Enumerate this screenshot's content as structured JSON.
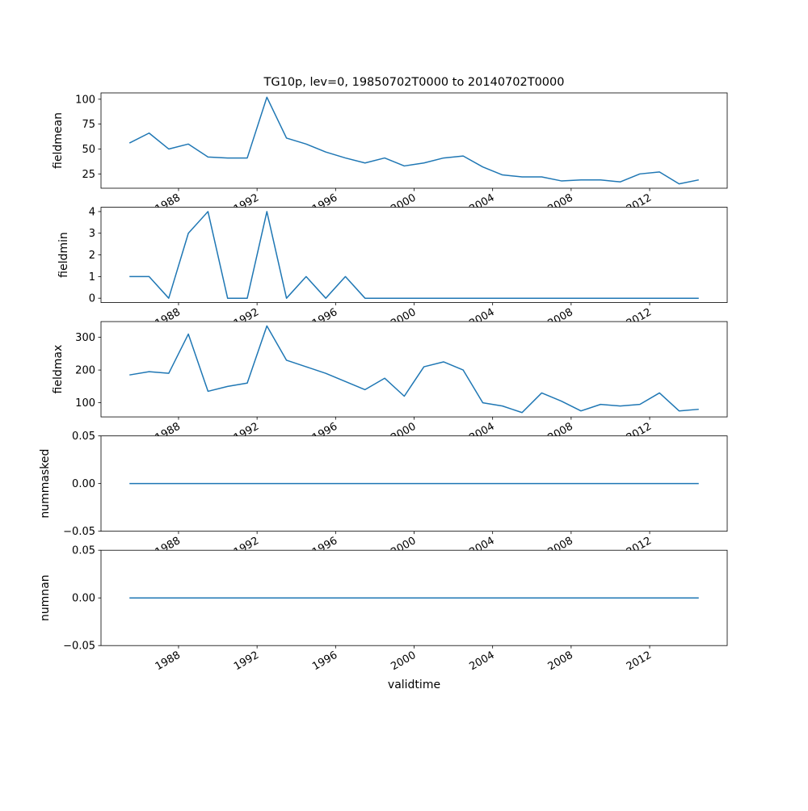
{
  "figure": {
    "title": "TG10p, lev=0, 19850702T0000 to 20140702T0000",
    "xlabel": "validtime",
    "background": "#ffffff",
    "line_color": "#1f77b4",
    "xlim": [
      1984.05,
      2015.95
    ],
    "x_years": [
      1985,
      1986,
      1987,
      1988,
      1989,
      1990,
      1991,
      1992,
      1993,
      1994,
      1995,
      1996,
      1997,
      1998,
      1999,
      2000,
      2001,
      2002,
      2003,
      2004,
      2005,
      2006,
      2007,
      2008,
      2009,
      2010,
      2011,
      2012,
      2013,
      2014
    ],
    "xticks": [
      {
        "value": 1988,
        "label": "1988"
      },
      {
        "value": 1992,
        "label": "1992"
      },
      {
        "value": 1996,
        "label": "1996"
      },
      {
        "value": 2000,
        "label": "2000"
      },
      {
        "value": 2004,
        "label": "2004"
      },
      {
        "value": 2008,
        "label": "2008"
      },
      {
        "value": 2012,
        "label": "2012"
      }
    ]
  },
  "chart_data": [
    {
      "type": "line",
      "ylabel": "fieldmean",
      "ylim": [
        10.65,
        106.35
      ],
      "yticks": [
        {
          "value": 25,
          "label": "25"
        },
        {
          "value": 50,
          "label": "50"
        },
        {
          "value": 75,
          "label": "75"
        },
        {
          "value": 100,
          "label": "100"
        }
      ],
      "values": [
        56,
        66,
        50,
        55,
        42,
        41,
        41,
        102,
        61,
        55,
        47,
        41,
        36,
        41,
        33,
        36,
        41,
        43,
        32,
        24,
        22,
        22,
        18,
        19,
        19,
        17,
        25,
        27,
        15,
        19
      ]
    },
    {
      "type": "line",
      "ylabel": "fieldmin",
      "ylim": [
        -0.2,
        4.2
      ],
      "yticks": [
        {
          "value": 0,
          "label": "0"
        },
        {
          "value": 1,
          "label": "1"
        },
        {
          "value": 2,
          "label": "2"
        },
        {
          "value": 3,
          "label": "3"
        },
        {
          "value": 4,
          "label": "4"
        }
      ],
      "values": [
        1,
        1,
        0,
        3,
        4,
        0,
        0,
        4,
        0,
        1,
        0,
        1,
        0,
        0,
        0,
        0,
        0,
        0,
        0,
        0,
        0,
        0,
        0,
        0,
        0,
        0,
        0,
        0,
        0,
        0
      ]
    },
    {
      "type": "line",
      "ylabel": "fieldmax",
      "ylim": [
        56.75,
        348.25
      ],
      "yticks": [
        {
          "value": 100,
          "label": "100"
        },
        {
          "value": 200,
          "label": "200"
        },
        {
          "value": 300,
          "label": "300"
        }
      ],
      "values": [
        185,
        195,
        190,
        310,
        135,
        150,
        160,
        335,
        230,
        210,
        190,
        165,
        140,
        175,
        120,
        210,
        225,
        200,
        100,
        90,
        70,
        130,
        105,
        75,
        95,
        90,
        95,
        130,
        75,
        80
      ]
    },
    {
      "type": "line",
      "ylabel": "nummasked",
      "ylim": [
        -0.05,
        0.05
      ],
      "yticks": [
        {
          "value": -0.05,
          "label": "−0.05"
        },
        {
          "value": 0,
          "label": "0.00"
        },
        {
          "value": 0.05,
          "label": "0.05"
        }
      ],
      "values": [
        0,
        0,
        0,
        0,
        0,
        0,
        0,
        0,
        0,
        0,
        0,
        0,
        0,
        0,
        0,
        0,
        0,
        0,
        0,
        0,
        0,
        0,
        0,
        0,
        0,
        0,
        0,
        0,
        0,
        0
      ]
    },
    {
      "type": "line",
      "ylabel": "numnan",
      "ylim": [
        -0.05,
        0.05
      ],
      "yticks": [
        {
          "value": -0.05,
          "label": "−0.05"
        },
        {
          "value": 0,
          "label": "0.00"
        },
        {
          "value": 0.05,
          "label": "0.05"
        }
      ],
      "values": [
        0,
        0,
        0,
        0,
        0,
        0,
        0,
        0,
        0,
        0,
        0,
        0,
        0,
        0,
        0,
        0,
        0,
        0,
        0,
        0,
        0,
        0,
        0,
        0,
        0,
        0,
        0,
        0,
        0,
        0
      ]
    }
  ]
}
